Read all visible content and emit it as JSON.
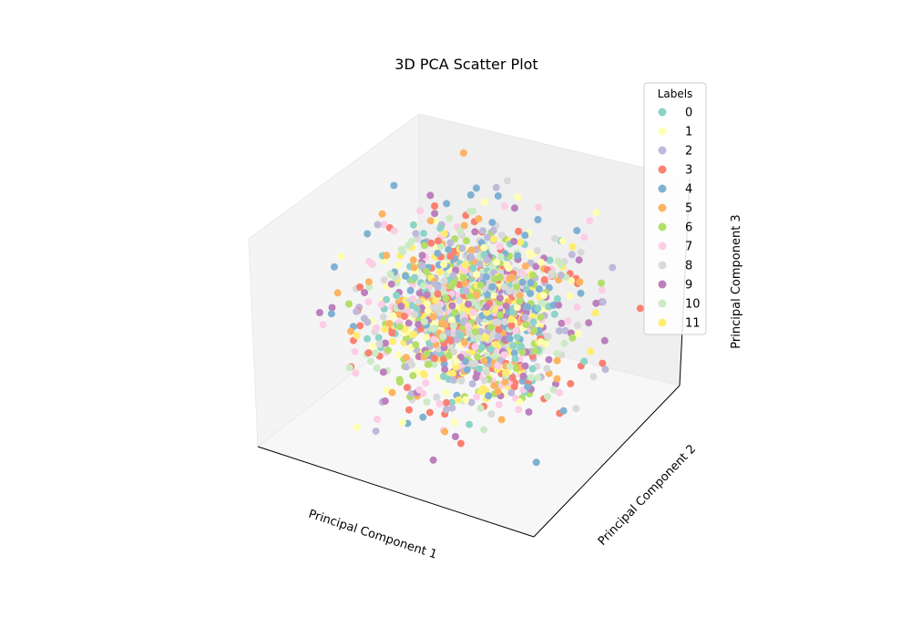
{
  "chart_data": {
    "type": "scatter",
    "projection": "3d",
    "title": "3D PCA Scatter Plot",
    "xlabel": "Principal Component 1",
    "ylabel": "Principal Component 2",
    "zlabel": "Principal Component 3",
    "ticks_visible": false,
    "grid": false,
    "xlim": [
      -3,
      3
    ],
    "ylim": [
      -3,
      3
    ],
    "zlim": [
      -3,
      3
    ],
    "legend": {
      "title": "Labels",
      "placement": "upper-right",
      "entries": [
        {
          "label": "0",
          "color": "#8dd3c7"
        },
        {
          "label": "1",
          "color": "#ffffb3"
        },
        {
          "label": "2",
          "color": "#bebada"
        },
        {
          "label": "3",
          "color": "#fb8072"
        },
        {
          "label": "4",
          "color": "#80b1d3"
        },
        {
          "label": "5",
          "color": "#fdb462"
        },
        {
          "label": "6",
          "color": "#b3de69"
        },
        {
          "label": "7",
          "color": "#fccde5"
        },
        {
          "label": "8",
          "color": "#d9d9d9"
        },
        {
          "label": "9",
          "color": "#bc80bd"
        },
        {
          "label": "10",
          "color": "#ccebc5"
        },
        {
          "label": "11",
          "color": "#ffed6f"
        }
      ]
    },
    "points_per_label": 110,
    "series_spread": 1.0
  }
}
